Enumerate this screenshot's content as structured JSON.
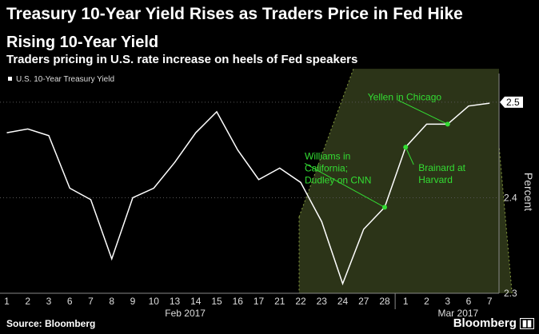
{
  "header": {
    "headline": "Treasury 10-Year Yield Rises as Traders Price in Fed Hike",
    "source": "Source: Bloomberg",
    "brand": "Bloomberg"
  },
  "colors": {
    "background": "#000000",
    "line": "#ffffff",
    "annotation": "#33dd33",
    "highlight_band": "#2c3418",
    "highlight_border": "#8aa040"
  },
  "chart_data": {
    "type": "line",
    "title": "Rising 10-Year Yield",
    "subtitle": "Traders pricing in U.S. rate increase on heels of Fed speakers",
    "ylabel": "Percent",
    "ylim": [
      2.3,
      2.52
    ],
    "yticks": [
      2.3,
      2.4,
      2.5
    ],
    "ytick_labels": [
      "2.3",
      "2.4",
      "2.5"
    ],
    "last_value_label": "2.5",
    "legend": "top-left",
    "categories": [
      "1",
      "2",
      "3",
      "6",
      "7",
      "8",
      "9",
      "10",
      "13",
      "14",
      "15",
      "16",
      "17",
      "21",
      "22",
      "23",
      "24",
      "27",
      "28",
      "1",
      "2",
      "3",
      "6",
      "7"
    ],
    "month_labels": [
      {
        "label": "Feb 2017",
        "at_index": 8.5
      },
      {
        "label": "Mar 2017",
        "at_index": 21.5
      }
    ],
    "series": [
      {
        "name": "U.S. 10-Year Treasury Yield",
        "values": [
          2.468,
          2.472,
          2.465,
          2.41,
          2.398,
          2.336,
          2.4,
          2.41,
          2.437,
          2.468,
          2.49,
          2.45,
          2.419,
          2.431,
          2.416,
          2.375,
          2.31,
          2.367,
          2.39,
          2.453,
          2.477,
          2.477,
          2.496,
          2.499
        ]
      }
    ],
    "annotations": [
      {
        "text": [
          "Williams in",
          "California;",
          "Dudley on CNN"
        ],
        "index": 18,
        "value": 2.39
      },
      {
        "text": [
          "Brainard at",
          "Harvard"
        ],
        "index": 19,
        "value": 2.453
      },
      {
        "text": [
          "Yellen in Chicago"
        ],
        "index": 21,
        "value": 2.477
      }
    ],
    "highlight": {
      "from_index": 14,
      "to_index": 23
    }
  }
}
